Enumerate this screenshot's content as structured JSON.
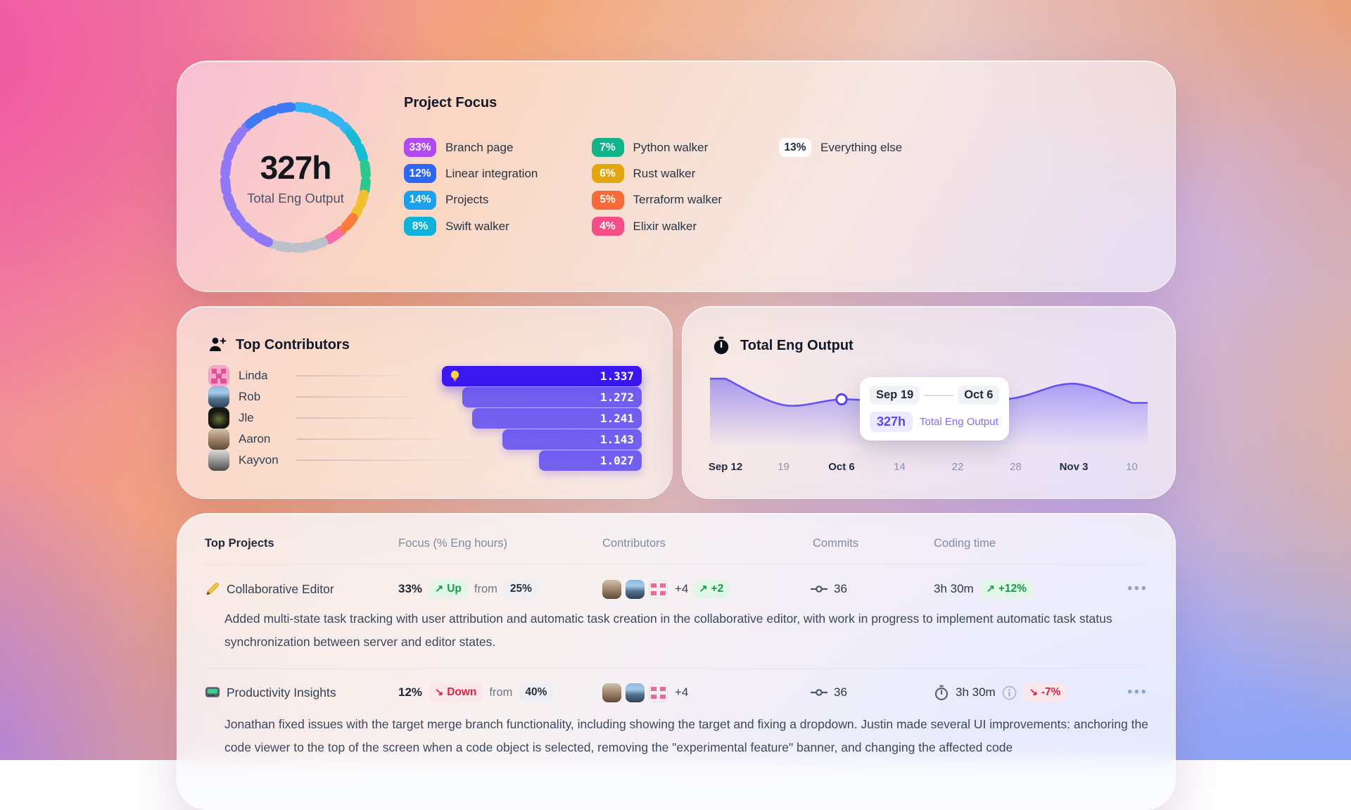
{
  "project_focus": {
    "title": "Project Focus",
    "center_value": "327h",
    "center_label": "Total Eng Output",
    "chart_data": {
      "type": "pie",
      "title": "Project Focus",
      "center_total_hours": "327h",
      "items": [
        {
          "label": "Branch page",
          "pct": "33%",
          "value": 33,
          "color": "#b14bf0",
          "ring_color": "#9178f6"
        },
        {
          "label": "Linear integration",
          "pct": "12%",
          "value": 12,
          "color": "#2e66f6",
          "ring_color": "#3f78f3"
        },
        {
          "label": "Projects",
          "pct": "14%",
          "value": 14,
          "color": "#1ba0ee",
          "ring_color": "#36b3f2"
        },
        {
          "label": "Swift walker",
          "pct": "8%",
          "value": 8,
          "color": "#10b3d8",
          "ring_color": "#17bcd4"
        },
        {
          "label": "Python walker",
          "pct": "7%",
          "value": 7,
          "color": "#13b389",
          "ring_color": "#2cc98f"
        },
        {
          "label": "Rust walker",
          "pct": "6%",
          "value": 6,
          "color": "#e3a70e",
          "ring_color": "#f0c02e"
        },
        {
          "label": "Terraform walker",
          "pct": "5%",
          "value": 5,
          "color": "#f96a38",
          "ring_color": "#fb7a3c"
        },
        {
          "label": "Elixir walker",
          "pct": "4%",
          "value": 4,
          "color": "#f44d87",
          "ring_color": "#f76ba8"
        },
        {
          "label": "Everything else",
          "pct": "13%",
          "value": 13,
          "color": "#ffffff",
          "ring_color": "#bcc0ca",
          "text_dark": true
        }
      ],
      "ring_order": [
        2,
        3,
        4,
        5,
        6,
        7,
        8,
        0,
        1
      ]
    }
  },
  "top_contributors": {
    "title": "Top Contributors",
    "chart_data": {
      "type": "bar",
      "orientation": "horizontal",
      "categories": [
        "Linda",
        "Rob",
        "Jle",
        "Aaron",
        "Kayvon"
      ],
      "values": [
        1337,
        1272,
        1241,
        1143,
        1027
      ],
      "value_labels": [
        "1.337",
        "1.272",
        "1.241",
        "1.143",
        "1.027"
      ],
      "x_domain": [
        700,
        1337
      ],
      "highlight_index": 0,
      "avatar_styles": [
        "pixel-pink",
        "photo-blue",
        "photo-dark",
        "photo-warm",
        "photo-gray"
      ]
    }
  },
  "eng_output": {
    "title": "Total Eng Output",
    "chart_data": {
      "type": "area",
      "x": [
        "Sep 12",
        "19",
        "Oct 6",
        "14",
        "22",
        "28",
        "Nov 3",
        "10"
      ],
      "x_emphasis": [
        true,
        false,
        true,
        false,
        false,
        false,
        true,
        false
      ],
      "values": [
        87,
        50,
        58,
        53,
        52,
        60,
        80,
        53
      ],
      "ylim": [
        0,
        100
      ],
      "line_color": "#6353f2",
      "marker_index": 2,
      "legend_position": "none",
      "grid": false
    },
    "tooltip": {
      "from": "Sep 19",
      "to": "Oct 6",
      "value": "327h",
      "label": "Total Eng Output"
    }
  },
  "table": {
    "columns": [
      "Top Projects",
      "Focus (% Eng hours)",
      "Contributors",
      "Commits",
      "Coding time"
    ],
    "rows": [
      {
        "name": "Collaborative Editor",
        "focus_pct": "33%",
        "trend_arrow": "↗",
        "trend_label": "Up",
        "from_label": "from",
        "from_pct": "25%",
        "extra_contributors": "+4",
        "delta_arrow": "↗",
        "contrib_delta": "+2",
        "commits": "36",
        "time": "3h 30m",
        "time_arrow": "↗",
        "time_delta": "+12%",
        "menu": "•••",
        "description": "Added multi-state task tracking with user attribution and automatic task creation in the collaborative editor, with work in progress to implement automatic task status synchronization between server and editor states."
      },
      {
        "name": "Productivity Insights",
        "focus_pct": "12%",
        "trend_arrow": "↘",
        "trend_label": "Down",
        "from_label": "from",
        "from_pct": "40%",
        "extra_contributors": "+4",
        "commits": "36",
        "time": "3h 30m",
        "time_arrow": "↘",
        "time_delta": "-7%",
        "menu": "•••",
        "description": "Jonathan fixed issues with the target merge branch functionality, including showing the target and fixing a dropdown. Justin made several UI improvements: anchoring the code viewer to the top of the screen when a code object is selected, removing the \"experimental feature\" banner, and changing the affected code"
      }
    ]
  }
}
